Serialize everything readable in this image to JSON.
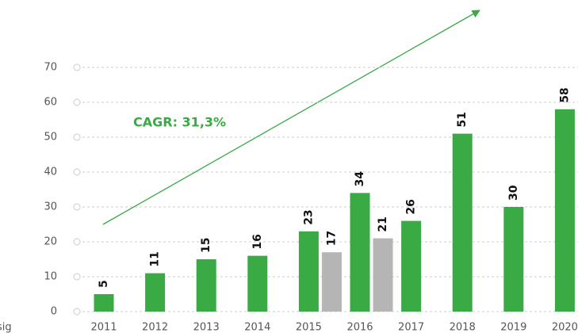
{
  "chart_data": {
    "type": "bar",
    "annotation": "CAGR: 31,3%",
    "footnote": "sig",
    "categories": [
      "2011",
      "2012",
      "2013",
      "2014",
      "2015",
      "2016",
      "2017",
      "2018",
      "2019",
      "2020"
    ],
    "series": [
      {
        "color": "#3aaa45",
        "values": [
          5,
          11,
          15,
          16,
          23,
          34,
          26,
          51,
          30,
          58
        ]
      },
      {
        "color": "#b5b5b5",
        "values": [
          null,
          null,
          null,
          null,
          17,
          21,
          null,
          null,
          null,
          null
        ]
      }
    ],
    "ylim": [
      0,
      70
    ],
    "yticks": [
      0,
      10,
      20,
      30,
      40,
      50,
      60,
      70
    ],
    "grid": true
  }
}
